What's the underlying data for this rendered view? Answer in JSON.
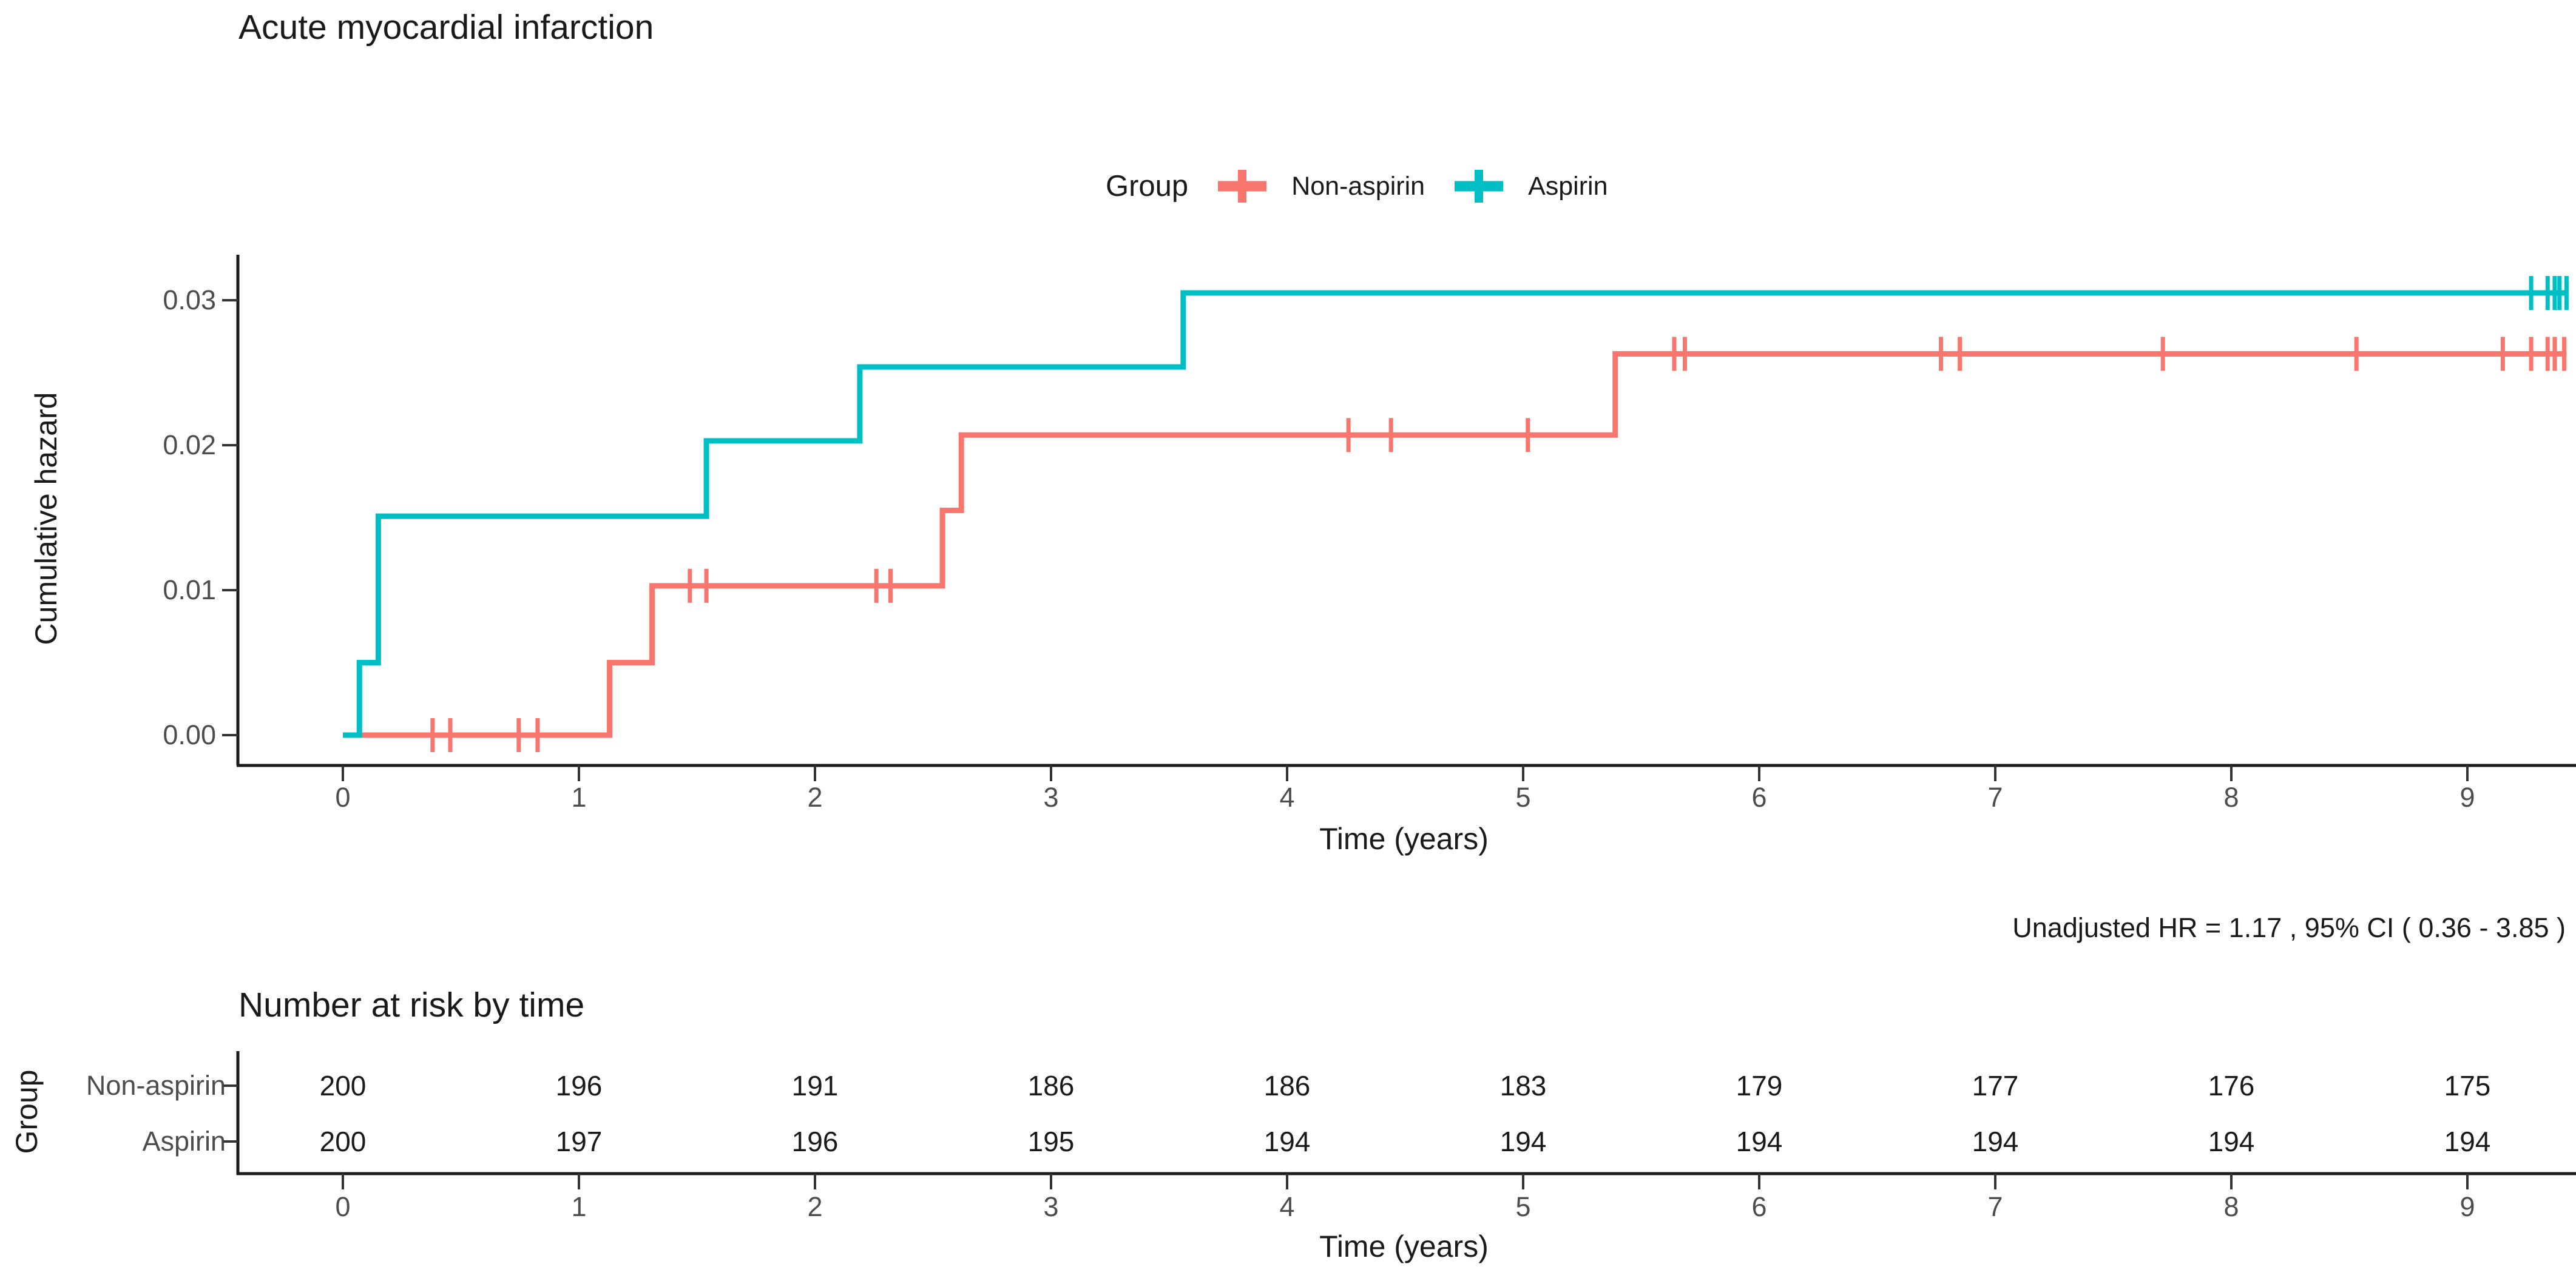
{
  "chart_data": {
    "type": "line",
    "subtype": "step-cumulative-hazard",
    "title": "Acute myocardial infarction",
    "xlabel": "Time (years)",
    "ylabel": "Cumulative hazard",
    "legend_title": "Group",
    "annotation": "Unadjusted HR = 1.17 , 95% CI ( 0.36 - 3.85 )",
    "x_ticks": [
      "0",
      "1",
      "2",
      "3",
      "4",
      "5",
      "6",
      "7",
      "8",
      "9"
    ],
    "y_ticks": [
      {
        "value": 0.0,
        "label": "0.00"
      },
      {
        "value": 0.01,
        "label": "0.01"
      },
      {
        "value": 0.02,
        "label": "0.02"
      },
      {
        "value": 0.03,
        "label": "0.03"
      }
    ],
    "xlim": [
      -0.45,
      9.45
    ],
    "ylim": [
      0,
      0.0321
    ],
    "grid": false,
    "legend_position": "top",
    "series": [
      {
        "name": "Non-aspirin",
        "color": "#F8766D",
        "steps": [
          [
            0,
            0
          ],
          [
            1.13,
            0.005
          ],
          [
            1.31,
            0.0103
          ],
          [
            2.54,
            0.0155
          ],
          [
            2.62,
            0.0207
          ],
          [
            5.39,
            0.0263
          ],
          [
            9.42,
            0.0263
          ]
        ],
        "censors": [
          [
            0.38,
            0
          ],
          [
            0.455,
            0
          ],
          [
            0.745,
            0
          ],
          [
            0.825,
            0
          ],
          [
            1.47,
            0.0103
          ],
          [
            1.54,
            0.0103
          ],
          [
            2.26,
            0.0103
          ],
          [
            2.32,
            0.0103
          ],
          [
            4.26,
            0.0207
          ],
          [
            4.44,
            0.0207
          ],
          [
            5.02,
            0.0207
          ],
          [
            5.64,
            0.0263
          ],
          [
            5.685,
            0.0263
          ],
          [
            6.77,
            0.0263
          ],
          [
            6.85,
            0.0263
          ],
          [
            7.71,
            0.0263
          ],
          [
            8.53,
            0.0263
          ],
          [
            9.15,
            0.0263
          ],
          [
            9.27,
            0.0263
          ],
          [
            9.34,
            0.0263
          ],
          [
            9.37,
            0.0263
          ],
          [
            9.41,
            0.0263
          ]
        ]
      },
      {
        "name": "Aspirin",
        "color": "#00BFC4",
        "steps": [
          [
            0,
            0
          ],
          [
            0.07,
            0.005
          ],
          [
            0.15,
            0.0151
          ],
          [
            1.54,
            0.0203
          ],
          [
            2.19,
            0.0254
          ],
          [
            3.56,
            0.0305
          ],
          [
            9.42,
            0.0305
          ]
        ],
        "censors": [
          [
            9.27,
            0.0305
          ],
          [
            9.34,
            0.0305
          ],
          [
            9.37,
            0.0305
          ],
          [
            9.39,
            0.0305
          ],
          [
            9.42,
            0.0305
          ]
        ]
      }
    ],
    "risk_table": {
      "title": "Number at risk by time",
      "ylabel": "Group",
      "xlabel": "Time (years)",
      "times": [
        "0",
        "1",
        "2",
        "3",
        "4",
        "5",
        "6",
        "7",
        "8",
        "9"
      ],
      "rows": [
        {
          "name": "Non-aspirin",
          "counts": [
            "200",
            "196",
            "191",
            "186",
            "186",
            "183",
            "179",
            "177",
            "176",
            "175"
          ]
        },
        {
          "name": "Aspirin",
          "counts": [
            "200",
            "197",
            "196",
            "195",
            "194",
            "194",
            "194",
            "194",
            "194",
            "194"
          ]
        }
      ]
    },
    "colors": {
      "axis_line": "#1a1a1a",
      "tick_mark": "#333333",
      "tick_label": "#4d4d4d",
      "row_label": "#4d4d4d",
      "number_text": "#1a1a1a"
    }
  }
}
